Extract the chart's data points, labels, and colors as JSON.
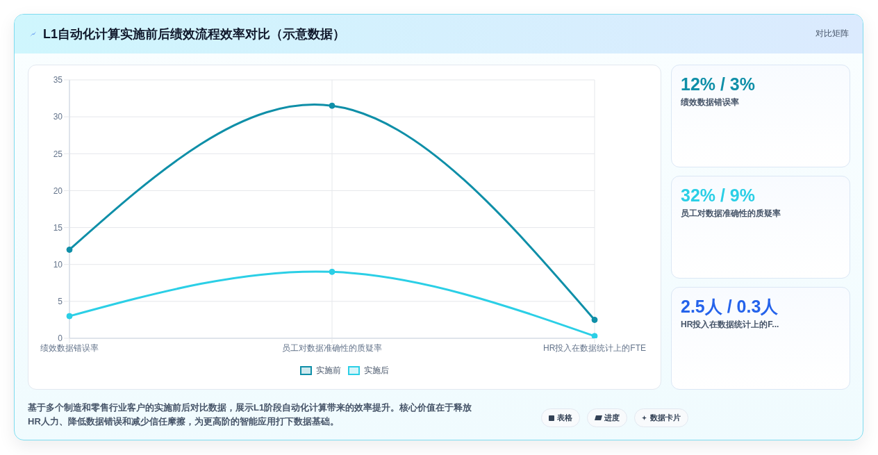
{
  "chart_data": {
    "type": "line",
    "title": "L1自动化计算实施前后绩效流程效率对比（示意数据）",
    "categories": [
      "绩效数据错误率",
      "员工对数据准确性的质疑率",
      "HR投入在数据统计上的FTE"
    ],
    "series": [
      {
        "name": "实施前",
        "color": "#0f8fa8",
        "values": [
          12,
          31.5,
          2.5
        ]
      },
      {
        "name": "实施后",
        "color": "#2bcfe6",
        "values": [
          3,
          9,
          0.3
        ]
      }
    ],
    "ylim": [
      0,
      35
    ],
    "yticks": [
      0,
      5,
      10,
      15,
      20,
      25,
      30,
      35
    ],
    "grid": true,
    "legend": "bottom",
    "marker": "circle",
    "annotations": [
      "对比矩阵",
      "12% / 3%",
      "绩效数据错误率",
      "32% / 9%",
      "员工对数据准确性的质疑率",
      "2.5人 / 0.3人",
      "HR投入在数据统计上的F...",
      "基于多个制造和零售行业客户的实施前后对比数据，展示L1阶段自动化计算带来的效率提升。核心价值在于释放HR人力、降低数据错误和减少信任摩擦，为更高阶的智能应用打下数据基础。",
      "表格",
      "进度",
      "数据卡片"
    ]
  }
}
